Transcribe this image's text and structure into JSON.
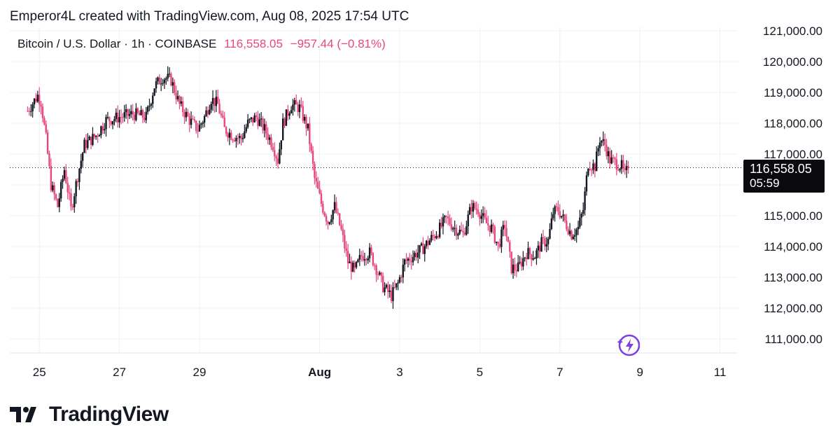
{
  "header": {
    "text": "Emperor4L created with TradingView.com, Aug 08, 2025 17:54 UTC"
  },
  "symbol": {
    "name": "Bitcoin / U.S. Dollar · 1h · COINBASE",
    "price": "116,558.05",
    "change": "−957.44 (−0.81%)"
  },
  "last_price_label": {
    "price": "116,558.05",
    "countdown": "05:59"
  },
  "brand": {
    "name": "TradingView"
  },
  "colors": {
    "up": "#131722",
    "down": "#e8467c",
    "grid": "#eef0f3",
    "text": "#131722",
    "accent": "#7b3fe4"
  },
  "icons": [
    "tradingview-logo-icon",
    "lightning-bolt-icon"
  ],
  "chart_data": {
    "type": "candlestick",
    "title": "Bitcoin / U.S. Dollar · 1h · COINBASE",
    "timeframe": "1h",
    "exchange": "COINBASE",
    "ylim": [
      110500,
      121500
    ],
    "y_ticks": [
      111000,
      112000,
      113000,
      114000,
      115000,
      116000,
      117000,
      118000,
      119000,
      120000,
      121000
    ],
    "y_tick_labels": [
      "111,000.00",
      "112,000.00",
      "113,000.00",
      "114,000.00",
      "115,000.00",
      "116,000.00",
      "117,000.00",
      "118,000.00",
      "119,000.00",
      "120,000.00",
      "121,000.00"
    ],
    "x_ticks": [
      {
        "label": "25",
        "date": "2025-07-25"
      },
      {
        "label": "27",
        "date": "2025-07-27"
      },
      {
        "label": "29",
        "date": "2025-07-29"
      },
      {
        "label": "Aug",
        "date": "2025-08-01",
        "bold": true
      },
      {
        "label": "3",
        "date": "2025-08-03"
      },
      {
        "label": "5",
        "date": "2025-08-05"
      },
      {
        "label": "7",
        "date": "2025-08-07"
      },
      {
        "label": "9",
        "date": "2025-08-09"
      },
      {
        "label": "11",
        "date": "2025-08-11"
      }
    ],
    "grid": true,
    "last_price": 116558.05,
    "price_path": {
      "x_start": "2025-07-24T17:00",
      "x_end": "2025-08-08T17:00",
      "points": [
        {
          "x": "2025-07-24T17:00",
          "y": 118400
        },
        {
          "x": "2025-07-24T23:00",
          "y": 118900
        },
        {
          "x": "2025-07-25T01:00",
          "y": 118700
        },
        {
          "x": "2025-07-25T04:00",
          "y": 117500
        },
        {
          "x": "2025-07-25T07:00",
          "y": 116000
        },
        {
          "x": "2025-07-25T11:00",
          "y": 115300
        },
        {
          "x": "2025-07-25T15:00",
          "y": 116500
        },
        {
          "x": "2025-07-25T19:00",
          "y": 115200
        },
        {
          "x": "2025-07-25T23:00",
          "y": 116300
        },
        {
          "x": "2025-07-26T03:00",
          "y": 117300
        },
        {
          "x": "2025-07-26T10:00",
          "y": 117600
        },
        {
          "x": "2025-07-26T16:00",
          "y": 118100
        },
        {
          "x": "2025-07-27T00:00",
          "y": 118200
        },
        {
          "x": "2025-07-27T08:00",
          "y": 118300
        },
        {
          "x": "2025-07-27T16:00",
          "y": 118200
        },
        {
          "x": "2025-07-27T21:00",
          "y": 119200
        },
        {
          "x": "2025-07-28T02:00",
          "y": 119500
        },
        {
          "x": "2025-07-28T07:00",
          "y": 119400
        },
        {
          "x": "2025-07-28T12:00",
          "y": 118600
        },
        {
          "x": "2025-07-28T18:00",
          "y": 118100
        },
        {
          "x": "2025-07-28T23:00",
          "y": 117800
        },
        {
          "x": "2025-07-29T03:00",
          "y": 118200
        },
        {
          "x": "2025-07-29T07:00",
          "y": 118800
        },
        {
          "x": "2025-07-29T11:00",
          "y": 118600
        },
        {
          "x": "2025-07-29T15:00",
          "y": 117800
        },
        {
          "x": "2025-07-29T20:00",
          "y": 117600
        },
        {
          "x": "2025-07-30T01:00",
          "y": 117500
        },
        {
          "x": "2025-07-30T05:00",
          "y": 118000
        },
        {
          "x": "2025-07-30T10:00",
          "y": 118200
        },
        {
          "x": "2025-07-30T15:00",
          "y": 117800
        },
        {
          "x": "2025-07-30T20:00",
          "y": 117300
        },
        {
          "x": "2025-07-30T23:00",
          "y": 116800
        },
        {
          "x": "2025-07-31T02:00",
          "y": 118000
        },
        {
          "x": "2025-07-31T07:00",
          "y": 118600
        },
        {
          "x": "2025-07-31T12:00",
          "y": 118500
        },
        {
          "x": "2025-07-31T17:00",
          "y": 117800
        },
        {
          "x": "2025-07-31T21:00",
          "y": 116200
        },
        {
          "x": "2025-08-01T01:00",
          "y": 115400
        },
        {
          "x": "2025-08-01T05:00",
          "y": 114800
        },
        {
          "x": "2025-08-01T09:00",
          "y": 115300
        },
        {
          "x": "2025-08-01T13:00",
          "y": 114500
        },
        {
          "x": "2025-08-01T17:00",
          "y": 113500
        },
        {
          "x": "2025-08-01T21:00",
          "y": 113200
        },
        {
          "x": "2025-08-02T01:00",
          "y": 113700
        },
        {
          "x": "2025-08-02T06:00",
          "y": 113800
        },
        {
          "x": "2025-08-02T10:00",
          "y": 113300
        },
        {
          "x": "2025-08-02T14:00",
          "y": 112700
        },
        {
          "x": "2025-08-02T19:00",
          "y": 112400
        },
        {
          "x": "2025-08-02T23:00",
          "y": 112800
        },
        {
          "x": "2025-08-03T03:00",
          "y": 113500
        },
        {
          "x": "2025-08-03T08:00",
          "y": 113700
        },
        {
          "x": "2025-08-03T13:00",
          "y": 113900
        },
        {
          "x": "2025-08-03T18:00",
          "y": 114200
        },
        {
          "x": "2025-08-03T23:00",
          "y": 114500
        },
        {
          "x": "2025-08-04T04:00",
          "y": 114900
        },
        {
          "x": "2025-08-04T09:00",
          "y": 114600
        },
        {
          "x": "2025-08-04T14:00",
          "y": 114400
        },
        {
          "x": "2025-08-04T19:00",
          "y": 115300
        },
        {
          "x": "2025-08-04T23:00",
          "y": 115200
        },
        {
          "x": "2025-08-05T03:00",
          "y": 114800
        },
        {
          "x": "2025-08-05T07:00",
          "y": 114600
        },
        {
          "x": "2025-08-05T11:00",
          "y": 114000
        },
        {
          "x": "2025-08-05T15:00",
          "y": 114700
        },
        {
          "x": "2025-08-05T19:00",
          "y": 113300
        },
        {
          "x": "2025-08-05T23:00",
          "y": 113300
        },
        {
          "x": "2025-08-06T04:00",
          "y": 113800
        },
        {
          "x": "2025-08-06T09:00",
          "y": 113700
        },
        {
          "x": "2025-08-06T13:00",
          "y": 114100
        },
        {
          "x": "2025-08-06T17:00",
          "y": 114200
        },
        {
          "x": "2025-08-06T20:00",
          "y": 115100
        },
        {
          "x": "2025-08-06T23:00",
          "y": 115200
        },
        {
          "x": "2025-08-07T03:00",
          "y": 114800
        },
        {
          "x": "2025-08-07T07:00",
          "y": 114400
        },
        {
          "x": "2025-08-07T11:00",
          "y": 114600
        },
        {
          "x": "2025-08-07T14:00",
          "y": 115200
        },
        {
          "x": "2025-08-07T17:00",
          "y": 116700
        },
        {
          "x": "2025-08-07T21:00",
          "y": 116600
        },
        {
          "x": "2025-08-08T00:00",
          "y": 117500
        },
        {
          "x": "2025-08-08T03:00",
          "y": 117300
        },
        {
          "x": "2025-08-08T06:00",
          "y": 116800
        },
        {
          "x": "2025-08-08T10:00",
          "y": 116700
        },
        {
          "x": "2025-08-08T13:00",
          "y": 116600
        },
        {
          "x": "2025-08-08T15:00",
          "y": 116300
        },
        {
          "x": "2025-08-08T17:00",
          "y": 116558
        }
      ]
    }
  }
}
